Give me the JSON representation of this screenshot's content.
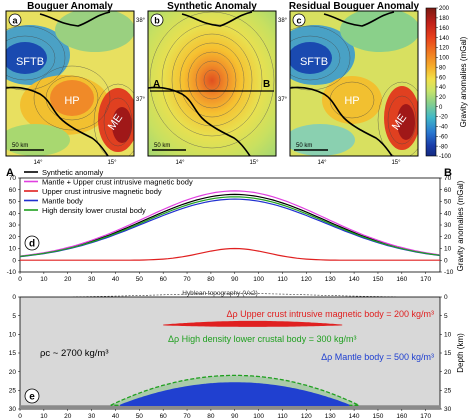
{
  "maps": [
    {
      "title": "Bouguer Anomaly",
      "letter": "a",
      "labels": [
        "SFTB",
        "HP",
        "ME"
      ],
      "scale": "50 km",
      "lon_ticks": [
        "14°",
        "15°"
      ],
      "lat_ticks": [
        "38°",
        "37°"
      ]
    },
    {
      "title": "Synthetic Anomaly",
      "letter": "b",
      "labels": [
        "A",
        "B"
      ],
      "scale": "50 km",
      "lon_ticks": [
        "14°",
        "15°"
      ],
      "lat_ticks": [
        "38°",
        "37°"
      ]
    },
    {
      "title": "Residual Bouguer Anomaly",
      "letter": "c",
      "labels": [
        "SFTB",
        "HP",
        "ME"
      ],
      "scale": "50 km",
      "lon_ticks": [
        "14°",
        "15°"
      ],
      "lat_ticks": [
        "38°",
        "37°"
      ]
    }
  ],
  "colorbar": {
    "label": "Gravity anomalies (mGal)",
    "ticks": [
      "200",
      "180",
      "160",
      "140",
      "120",
      "100",
      "80",
      "60",
      "40",
      "20",
      "0",
      "-20",
      "-40",
      "-60",
      "-80",
      "-100"
    ],
    "colors": [
      "#7a1a12",
      "#c0201a",
      "#e8401c",
      "#f07a22",
      "#f6b02c",
      "#f2e04a",
      "#c8e46a",
      "#8ad08a",
      "#40b8c8",
      "#2a78d0",
      "#1a3ca8",
      "#142a80"
    ]
  },
  "profile_labels": {
    "left": "A",
    "right": "B"
  },
  "chart_data": [
    {
      "type": "line",
      "panel": "d",
      "ylabel": "Gravity anomalies (mGal)",
      "xlim": [
        0,
        176
      ],
      "ylim": [
        -10,
        70
      ],
      "xticks": [
        "0",
        "10",
        "20",
        "30",
        "40",
        "50",
        "60",
        "70",
        "80",
        "90",
        "100",
        "110",
        "120",
        "130",
        "140",
        "150",
        "160",
        "170"
      ],
      "yticks": [
        "-10",
        "0",
        "10",
        "20",
        "30",
        "40",
        "50",
        "60",
        "70"
      ],
      "legend_position": "top-left",
      "series": [
        {
          "name": "Synthetic anomaly",
          "color": "#000000",
          "peak": 56,
          "x0": 90,
          "sigma": 38,
          "x": [
            0,
            10,
            20,
            30,
            40,
            50,
            60,
            70,
            80,
            90,
            100,
            110,
            120,
            130,
            140,
            150,
            160,
            170,
            176
          ],
          "values": [
            2,
            4.5,
            8,
            13,
            20,
            28,
            37,
            46,
            53,
            56,
            53,
            46,
            37,
            28,
            20,
            13,
            8,
            4.5,
            3
          ]
        },
        {
          "name": "Mantle + Upper crust intrusive magnetic body",
          "color": "#e040e0",
          "peak": 59,
          "x0": 90,
          "sigma": 38,
          "x": [
            0,
            10,
            20,
            30,
            40,
            50,
            60,
            70,
            80,
            90,
            100,
            110,
            120,
            130,
            140,
            150,
            160,
            170,
            176
          ],
          "values": [
            2,
            5,
            9,
            14,
            21,
            30,
            39,
            49,
            56,
            59,
            56,
            49,
            39,
            30,
            21,
            14,
            9,
            5,
            3
          ]
        },
        {
          "name": "Upper crust intrusive magnetic body",
          "color": "#e02020",
          "peak": 10,
          "x0": 90,
          "sigma": 14,
          "x": [
            0,
            10,
            20,
            30,
            40,
            50,
            60,
            70,
            80,
            90,
            100,
            110,
            120,
            130,
            140,
            150,
            160,
            170,
            176
          ],
          "values": [
            0,
            0,
            0,
            0,
            0.5,
            1,
            2,
            4,
            7.5,
            10,
            7.5,
            4,
            2,
            1,
            0.5,
            0,
            0,
            0,
            0
          ]
        },
        {
          "name": "Mantle body",
          "color": "#2030d0",
          "peak": 52,
          "x0": 90,
          "sigma": 38,
          "x": [
            0,
            10,
            20,
            30,
            40,
            50,
            60,
            70,
            80,
            90,
            100,
            110,
            120,
            130,
            140,
            150,
            160,
            170,
            176
          ],
          "values": [
            2,
            4,
            7.5,
            12,
            18.5,
            26,
            34,
            43,
            49,
            52,
            49,
            43,
            34,
            26,
            18.5,
            12,
            7.5,
            4,
            3
          ]
        },
        {
          "name": "High density lower crustal body",
          "color": "#20a020",
          "peak": 54,
          "x0": 90,
          "sigma": 38,
          "x": [
            0,
            10,
            20,
            30,
            40,
            50,
            60,
            70,
            80,
            90,
            100,
            110,
            120,
            130,
            140,
            150,
            160,
            170,
            176
          ],
          "values": [
            2,
            4.2,
            7.8,
            12.5,
            19,
            27,
            35.5,
            44.5,
            51,
            54,
            51,
            44.5,
            35.5,
            27,
            19,
            12.5,
            7.8,
            4.2,
            3
          ]
        }
      ]
    },
    {
      "type": "area",
      "panel": "e",
      "ylabel": "Depth (km)",
      "xlim": [
        0,
        176
      ],
      "ylim": [
        0,
        30
      ],
      "xticks": [
        "0",
        "10",
        "20",
        "30",
        "40",
        "50",
        "60",
        "70",
        "80",
        "90",
        "100",
        "110",
        "120",
        "130",
        "140",
        "150",
        "160",
        "170"
      ],
      "yticks": [
        "0",
        "5",
        "10",
        "15",
        "20",
        "25",
        "30"
      ],
      "annotations": {
        "topography": "Hyblean topography (Vx2)",
        "rho_c": "ρc ~ 2700 kg/m³",
        "upper_body": "Δρ Upper crust intrusive magnetic body = 200 kg/m³",
        "lower_body": "Δρ High density lower crustal body = 300 kg/m³",
        "mantle_body": "Δρ Mantle body = 500 kg/m³"
      },
      "bodies": [
        {
          "name": "Upper crust intrusive magnetic body",
          "x_range": [
            60,
            135
          ],
          "depth_top": 6.5,
          "depth_bottom": 8.5,
          "color": "#e02020"
        },
        {
          "name": "High density lower crustal body",
          "x_range": [
            38,
            142
          ],
          "depth_top": 21,
          "depth_bottom": 29,
          "color": "#20a020"
        },
        {
          "name": "Mantle body",
          "x_range": [
            42,
            138
          ],
          "depth_top": 23,
          "depth_bottom": 29,
          "color": "#2040d0"
        }
      ],
      "moho_depth": 29
    }
  ]
}
